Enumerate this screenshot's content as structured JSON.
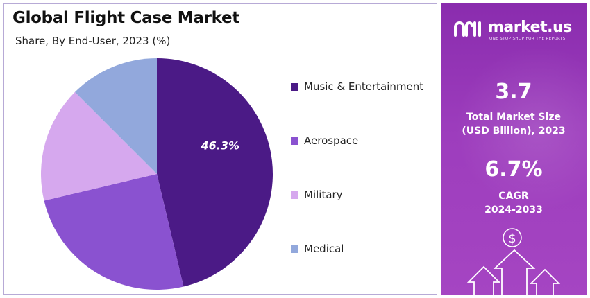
{
  "chart_data": {
    "type": "pie",
    "title": "Global Flight Case Market",
    "subtitle": "Share, By End-User, 2023 (%)",
    "categories": [
      "Music & Entertainment",
      "Aerospace",
      "Military",
      "Medical"
    ],
    "values": [
      46.3,
      25.0,
      16.2,
      12.5
    ],
    "colors": [
      "#4b1a86",
      "#8a52d0",
      "#d6a8ee",
      "#92a8dc"
    ],
    "data_labels": [
      "46.3%",
      "",
      "",
      ""
    ],
    "legend_placement": "right"
  },
  "sidebar": {
    "brand_name": "market.us",
    "brand_tagline": "ONE STOP SHOP FOR THE REPORTS",
    "market_size_value": "3.7",
    "market_size_label_line1": "Total Market Size",
    "market_size_label_line2": "(USD Billion), 2023",
    "cagr_value": "6.7%",
    "cagr_label_line1": "CAGR",
    "cagr_label_line2": "2024-2033",
    "currency_symbol": "$"
  }
}
